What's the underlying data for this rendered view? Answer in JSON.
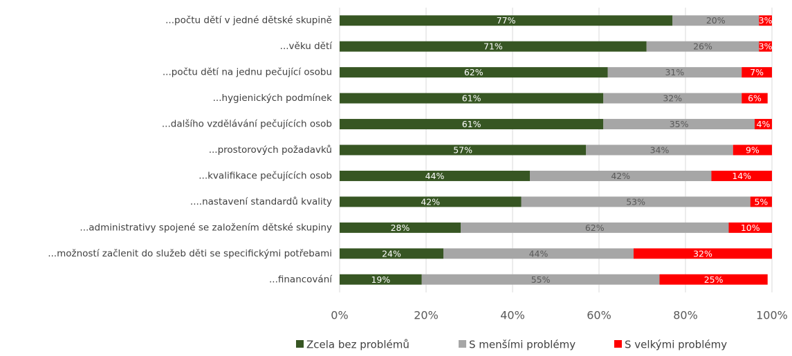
{
  "chart_data": {
    "type": "stacked_barh",
    "categories": [
      "...počtu dětí v jedné dětské skupině",
      "...věku dětí",
      "...počtu dětí na jednu pečující osobu",
      "...hygienických podmínek",
      "...dalšího vzdělávání pečujících osob",
      "...prostorových požadavků",
      "...kvalifikace pečujících osob",
      "....nastavení standardů kvality",
      "...administrativy spojené se založením dětské skupiny",
      "...možností začlenit do služeb děti se specifickými potřebami",
      "...financování"
    ],
    "series": [
      {
        "name": "Zcela bez problémů",
        "color": "#375623",
        "values": [
          77,
          71,
          62,
          61,
          61,
          57,
          44,
          42,
          28,
          24,
          19
        ],
        "value_labels": [
          "77%",
          "71%",
          "62%",
          "61%",
          "61%",
          "57%",
          "44%",
          "42%",
          "28%",
          "24%",
          "19%"
        ]
      },
      {
        "name": "S menšími problémy",
        "color": "#a6a6a6",
        "values": [
          20,
          26,
          31,
          32,
          35,
          34,
          42,
          53,
          62,
          44,
          55
        ],
        "value_labels": [
          "20%",
          "26%",
          "31%",
          "32%",
          "35%",
          "34%",
          "42%",
          "53%",
          "62%",
          "44%",
          "55%"
        ]
      },
      {
        "name": "S velkými problémy",
        "color": "#ff0000",
        "values": [
          3,
          3,
          7,
          6,
          4,
          9,
          14,
          5,
          10,
          32,
          25
        ],
        "value_labels": [
          "3%",
          "3%",
          "7%",
          "6%",
          "4%",
          "9%",
          "14%",
          "5%",
          "10%",
          "32%",
          "25%"
        ]
      }
    ],
    "xlim": [
      0,
      100
    ],
    "xticks": [
      {
        "value": 0,
        "label": "0%"
      },
      {
        "value": 20,
        "label": "20%"
      },
      {
        "value": 40,
        "label": "40%"
      },
      {
        "value": 60,
        "label": "60%"
      },
      {
        "value": 80,
        "label": "80%"
      },
      {
        "value": 100,
        "label": "100%"
      }
    ],
    "grid": true,
    "legend": "bottom"
  }
}
